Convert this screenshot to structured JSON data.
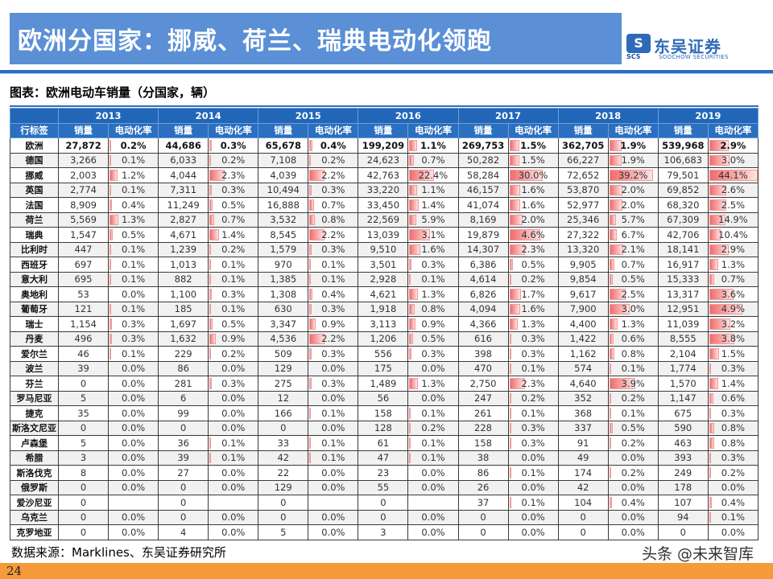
{
  "slide": {
    "title": "欧洲分国家：挪威、荷兰、瑞典电动化领跑",
    "page_number": "24",
    "logo": {
      "mark": "S",
      "cn": "东吴证券",
      "en": "SOOCHOW SECURITIES",
      "abbr": "SCS"
    },
    "chart_title": "图表：欧洲电动车销量（分国家，辆）",
    "source": "数据来源：Marklines、东吴证券研究所",
    "watermark": "头条 @未来智库"
  },
  "colors": {
    "header_blue": "#2266b8",
    "title_bar": "#5b8fd6",
    "bar_red": "#f26b6b",
    "footer_orange": "#f59b3a"
  },
  "table": {
    "row_label_header": "行标签",
    "years": [
      "2013",
      "2014",
      "2015",
      "2016",
      "2017",
      "2018",
      "2019"
    ],
    "sub_headers": [
      "销量",
      "电动化率"
    ],
    "rows": [
      {
        "label": "欧洲",
        "values": [
          [
            "27,872",
            "0.2%"
          ],
          [
            "44,686",
            "0.3%"
          ],
          [
            "65,678",
            "0.4%"
          ],
          [
            "199,209",
            "1.1%"
          ],
          [
            "269,753",
            "1.5%"
          ],
          [
            "362,705",
            "1.9%"
          ],
          [
            "539,968",
            "2.9%"
          ]
        ]
      },
      {
        "label": "德国",
        "values": [
          [
            "3,266",
            "0.1%"
          ],
          [
            "6,033",
            "0.2%"
          ],
          [
            "7,108",
            "0.2%"
          ],
          [
            "24,623",
            "0.7%"
          ],
          [
            "50,282",
            "1.5%"
          ],
          [
            "66,227",
            "1.9%"
          ],
          [
            "106,683",
            "3.0%"
          ]
        ]
      },
      {
        "label": "挪威",
        "values": [
          [
            "2,003",
            "1.2%"
          ],
          [
            "4,044",
            "2.3%"
          ],
          [
            "4,039",
            "2.2%"
          ],
          [
            "42,763",
            "22.4%"
          ],
          [
            "58,284",
            "30.0%"
          ],
          [
            "72,652",
            "39.2%"
          ],
          [
            "79,501",
            "44.1%"
          ]
        ]
      },
      {
        "label": "英国",
        "values": [
          [
            "2,774",
            "0.1%"
          ],
          [
            "7,311",
            "0.3%"
          ],
          [
            "10,494",
            "0.3%"
          ],
          [
            "33,220",
            "1.1%"
          ],
          [
            "46,157",
            "1.6%"
          ],
          [
            "53,870",
            "2.0%"
          ],
          [
            "69,852",
            "2.6%"
          ]
        ]
      },
      {
        "label": "法国",
        "values": [
          [
            "8,909",
            "0.4%"
          ],
          [
            "11,249",
            "0.5%"
          ],
          [
            "16,888",
            "0.7%"
          ],
          [
            "33,450",
            "1.4%"
          ],
          [
            "41,074",
            "1.6%"
          ],
          [
            "52,977",
            "2.0%"
          ],
          [
            "68,320",
            "2.5%"
          ]
        ]
      },
      {
        "label": "荷兰",
        "values": [
          [
            "5,569",
            "1.3%"
          ],
          [
            "2,827",
            "0.7%"
          ],
          [
            "3,532",
            "0.8%"
          ],
          [
            "22,569",
            "5.9%"
          ],
          [
            "8,169",
            "2.0%"
          ],
          [
            "25,346",
            "5.7%"
          ],
          [
            "67,309",
            "14.9%"
          ]
        ]
      },
      {
        "label": "瑞典",
        "values": [
          [
            "1,547",
            "0.5%"
          ],
          [
            "4,671",
            "1.4%"
          ],
          [
            "8,545",
            "2.2%"
          ],
          [
            "13,039",
            "3.1%"
          ],
          [
            "19,879",
            "4.6%"
          ],
          [
            "27,322",
            "6.7%"
          ],
          [
            "42,706",
            "10.4%"
          ]
        ]
      },
      {
        "label": "比利时",
        "values": [
          [
            "447",
            "0.1%"
          ],
          [
            "1,239",
            "0.2%"
          ],
          [
            "1,579",
            "0.3%"
          ],
          [
            "9,510",
            "1.6%"
          ],
          [
            "14,307",
            "2.3%"
          ],
          [
            "13,320",
            "2.1%"
          ],
          [
            "18,141",
            "2.9%"
          ]
        ]
      },
      {
        "label": "西班牙",
        "values": [
          [
            "697",
            "0.1%"
          ],
          [
            "1,013",
            "0.1%"
          ],
          [
            "970",
            "0.1%"
          ],
          [
            "3,501",
            "0.3%"
          ],
          [
            "6,386",
            "0.5%"
          ],
          [
            "9,905",
            "0.7%"
          ],
          [
            "16,917",
            "1.3%"
          ]
        ]
      },
      {
        "label": "意大利",
        "values": [
          [
            "695",
            "0.1%"
          ],
          [
            "882",
            "0.1%"
          ],
          [
            "1,385",
            "0.1%"
          ],
          [
            "2,928",
            "0.1%"
          ],
          [
            "4,614",
            "0.2%"
          ],
          [
            "9,854",
            "0.5%"
          ],
          [
            "15,333",
            "0.7%"
          ]
        ]
      },
      {
        "label": "奥地利",
        "values": [
          [
            "53",
            "0.0%"
          ],
          [
            "1,100",
            "0.3%"
          ],
          [
            "1,308",
            "0.4%"
          ],
          [
            "4,621",
            "1.3%"
          ],
          [
            "6,826",
            "1.7%"
          ],
          [
            "9,617",
            "2.5%"
          ],
          [
            "13,317",
            "3.6%"
          ]
        ]
      },
      {
        "label": "葡萄牙",
        "values": [
          [
            "121",
            "0.1%"
          ],
          [
            "185",
            "0.1%"
          ],
          [
            "630",
            "0.3%"
          ],
          [
            "1,918",
            "0.8%"
          ],
          [
            "4,094",
            "1.6%"
          ],
          [
            "7,900",
            "3.0%"
          ],
          [
            "12,951",
            "4.9%"
          ]
        ]
      },
      {
        "label": "瑞士",
        "values": [
          [
            "1,154",
            "0.3%"
          ],
          [
            "1,697",
            "0.5%"
          ],
          [
            "3,347",
            "0.9%"
          ],
          [
            "3,113",
            "0.9%"
          ],
          [
            "4,366",
            "1.3%"
          ],
          [
            "4,400",
            "1.3%"
          ],
          [
            "11,039",
            "3.2%"
          ]
        ]
      },
      {
        "label": "丹麦",
        "values": [
          [
            "496",
            "0.3%"
          ],
          [
            "1,632",
            "0.9%"
          ],
          [
            "4,536",
            "2.2%"
          ],
          [
            "1,206",
            "0.5%"
          ],
          [
            "616",
            "0.3%"
          ],
          [
            "1,422",
            "0.6%"
          ],
          [
            "8,555",
            "3.8%"
          ]
        ]
      },
      {
        "label": "爱尔兰",
        "values": [
          [
            "46",
            "0.1%"
          ],
          [
            "229",
            "0.2%"
          ],
          [
            "509",
            "0.3%"
          ],
          [
            "556",
            "0.3%"
          ],
          [
            "398",
            "0.3%"
          ],
          [
            "1,162",
            "0.8%"
          ],
          [
            "2,104",
            "1.5%"
          ]
        ]
      },
      {
        "label": "波兰",
        "values": [
          [
            "39",
            "0.0%"
          ],
          [
            "86",
            "0.0%"
          ],
          [
            "129",
            "0.0%"
          ],
          [
            "175",
            "0.0%"
          ],
          [
            "470",
            "0.1%"
          ],
          [
            "574",
            "0.1%"
          ],
          [
            "1,774",
            "0.3%"
          ]
        ]
      },
      {
        "label": "芬兰",
        "values": [
          [
            "0",
            "0.0%"
          ],
          [
            "281",
            "0.3%"
          ],
          [
            "275",
            "0.3%"
          ],
          [
            "1,489",
            "1.3%"
          ],
          [
            "2,750",
            "2.3%"
          ],
          [
            "4,640",
            "3.9%"
          ],
          [
            "1,570",
            "1.4%"
          ]
        ]
      },
      {
        "label": "罗马尼亚",
        "values": [
          [
            "5",
            "0.0%"
          ],
          [
            "6",
            "0.0%"
          ],
          [
            "12",
            "0.0%"
          ],
          [
            "56",
            "0.0%"
          ],
          [
            "247",
            "0.2%"
          ],
          [
            "352",
            "0.2%"
          ],
          [
            "1,147",
            "0.6%"
          ]
        ]
      },
      {
        "label": "捷克",
        "values": [
          [
            "35",
            "0.0%"
          ],
          [
            "99",
            "0.0%"
          ],
          [
            "166",
            "0.1%"
          ],
          [
            "158",
            "0.1%"
          ],
          [
            "261",
            "0.1%"
          ],
          [
            "368",
            "0.1%"
          ],
          [
            "675",
            "0.3%"
          ]
        ]
      },
      {
        "label": "斯洛文尼亚",
        "values": [
          [
            "0",
            "0.0%"
          ],
          [
            "0",
            "0.0%"
          ],
          [
            "0",
            "0.0%"
          ],
          [
            "128",
            "0.2%"
          ],
          [
            "228",
            "0.3%"
          ],
          [
            "337",
            "0.5%"
          ],
          [
            "590",
            "0.8%"
          ]
        ]
      },
      {
        "label": "卢森堡",
        "values": [
          [
            "5",
            "0.0%"
          ],
          [
            "36",
            "0.1%"
          ],
          [
            "33",
            "0.1%"
          ],
          [
            "61",
            "0.1%"
          ],
          [
            "158",
            "0.3%"
          ],
          [
            "91",
            "0.2%"
          ],
          [
            "463",
            "0.8%"
          ]
        ]
      },
      {
        "label": "希腊",
        "values": [
          [
            "3",
            "0.0%"
          ],
          [
            "39",
            "0.1%"
          ],
          [
            "42",
            "0.1%"
          ],
          [
            "47",
            "0.1%"
          ],
          [
            "38",
            "0.0%"
          ],
          [
            "49",
            "0.0%"
          ],
          [
            "393",
            "0.3%"
          ]
        ]
      },
      {
        "label": "斯洛伐克",
        "values": [
          [
            "8",
            "0.0%"
          ],
          [
            "27",
            "0.0%"
          ],
          [
            "22",
            "0.0%"
          ],
          [
            "23",
            "0.0%"
          ],
          [
            "86",
            "0.1%"
          ],
          [
            "174",
            "0.2%"
          ],
          [
            "249",
            "0.2%"
          ]
        ]
      },
      {
        "label": "俄罗斯",
        "values": [
          [
            "0",
            "0.0%"
          ],
          [
            "0",
            "0.0%"
          ],
          [
            "129",
            "0.0%"
          ],
          [
            "55",
            "0.0%"
          ],
          [
            "26",
            "0.0%"
          ],
          [
            "42",
            "0.0%"
          ],
          [
            "178",
            "0.0%"
          ]
        ]
      },
      {
        "label": "爱沙尼亚",
        "values": [
          [
            "0",
            ""
          ],
          [
            "0",
            ""
          ],
          [
            "0",
            ""
          ],
          [
            "0",
            ""
          ],
          [
            "37",
            "0.1%"
          ],
          [
            "104",
            "0.4%"
          ],
          [
            "107",
            "0.4%"
          ]
        ]
      },
      {
        "label": "乌克兰",
        "values": [
          [
            "0",
            "0.0%"
          ],
          [
            "0",
            "0.0%"
          ],
          [
            "0",
            "0.0%"
          ],
          [
            "0",
            "0.0%"
          ],
          [
            "0",
            "0.0%"
          ],
          [
            "0",
            "0.0%"
          ],
          [
            "94",
            "0.1%"
          ]
        ]
      },
      {
        "label": "克罗地亚",
        "values": [
          [
            "0",
            "0.0%"
          ],
          [
            "4",
            "0.0%"
          ],
          [
            "5",
            "0.0%"
          ],
          [
            "3",
            "0.0%"
          ],
          [
            "0",
            "0.0%"
          ],
          [
            "0",
            "0.0%"
          ],
          [
            "0",
            "0.0%"
          ]
        ]
      }
    ]
  }
}
